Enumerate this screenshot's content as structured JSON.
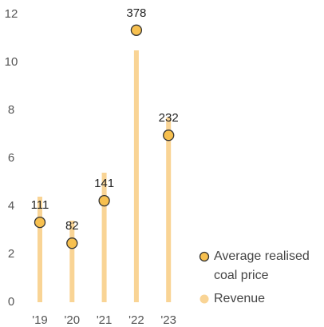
{
  "chart_data": {
    "type": "bar",
    "categories": [
      "'19",
      "'20",
      "'21",
      "'22",
      "'23"
    ],
    "series": [
      {
        "name": "Revenue",
        "color": "#f9d495",
        "values": [
          4.4,
          3.4,
          5.4,
          10.5,
          7.7
        ]
      },
      {
        "name": "Average realised coal price",
        "color": "#f7c04f",
        "axis": "y2",
        "values": [
          111,
          82,
          141,
          378,
          232
        ]
      }
    ],
    "ylim": [
      0,
      12
    ],
    "yticks": [
      0,
      2,
      4,
      6,
      8,
      10,
      12
    ],
    "y2lim": [
      0,
      400
    ]
  }
}
